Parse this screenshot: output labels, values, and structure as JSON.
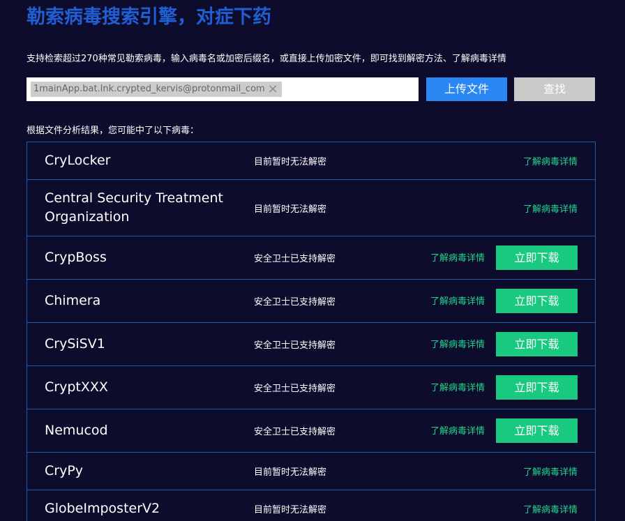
{
  "header": {
    "title": "勒索病毒搜索引擎，对症下药",
    "subtitle": "支持检索超过270种常见勒索病毒，输入病毒名或加密后缀名，或直接上传加密文件，即可找到解密方法、了解病毒详情"
  },
  "search": {
    "chip": "1mainApp.bat.lnk.crypted_kervis@protonmail_com",
    "upload_button": "上传文件",
    "search_button": "查找"
  },
  "results": {
    "label": "根据文件分析结果，您可能中了以下病毒：",
    "rows": [
      {
        "name": "CryLocker",
        "status": "目前暂时无法解密",
        "link": "了解病毒详情"
      },
      {
        "name": "Central Security Treatment Organization",
        "status": "目前暂时无法解密",
        "link": "了解病毒详情"
      },
      {
        "name": "CrypBoss",
        "status": "安全卫士已支持解密",
        "link": "了解病毒详情",
        "button": "立即下载"
      },
      {
        "name": "Chimera",
        "status": "安全卫士已支持解密",
        "link": "了解病毒详情",
        "button": "立即下载"
      },
      {
        "name": "CrySiSV1",
        "status": "安全卫士已支持解密",
        "link": "了解病毒详情",
        "button": "立即下载"
      },
      {
        "name": "CryptXXX",
        "status": "安全卫士已支持解密",
        "link": "了解病毒详情",
        "button": "立即下载"
      },
      {
        "name": "Nemucod",
        "status": "安全卫士已支持解密",
        "link": "了解病毒详情",
        "button": "立即下载"
      },
      {
        "name": "CryPy",
        "status": "目前暂时无法解密",
        "link": "了解病毒详情"
      },
      {
        "name": "GlobeImposterV2",
        "status": "目前暂时无法解密",
        "link": "了解病毒详情"
      }
    ]
  }
}
